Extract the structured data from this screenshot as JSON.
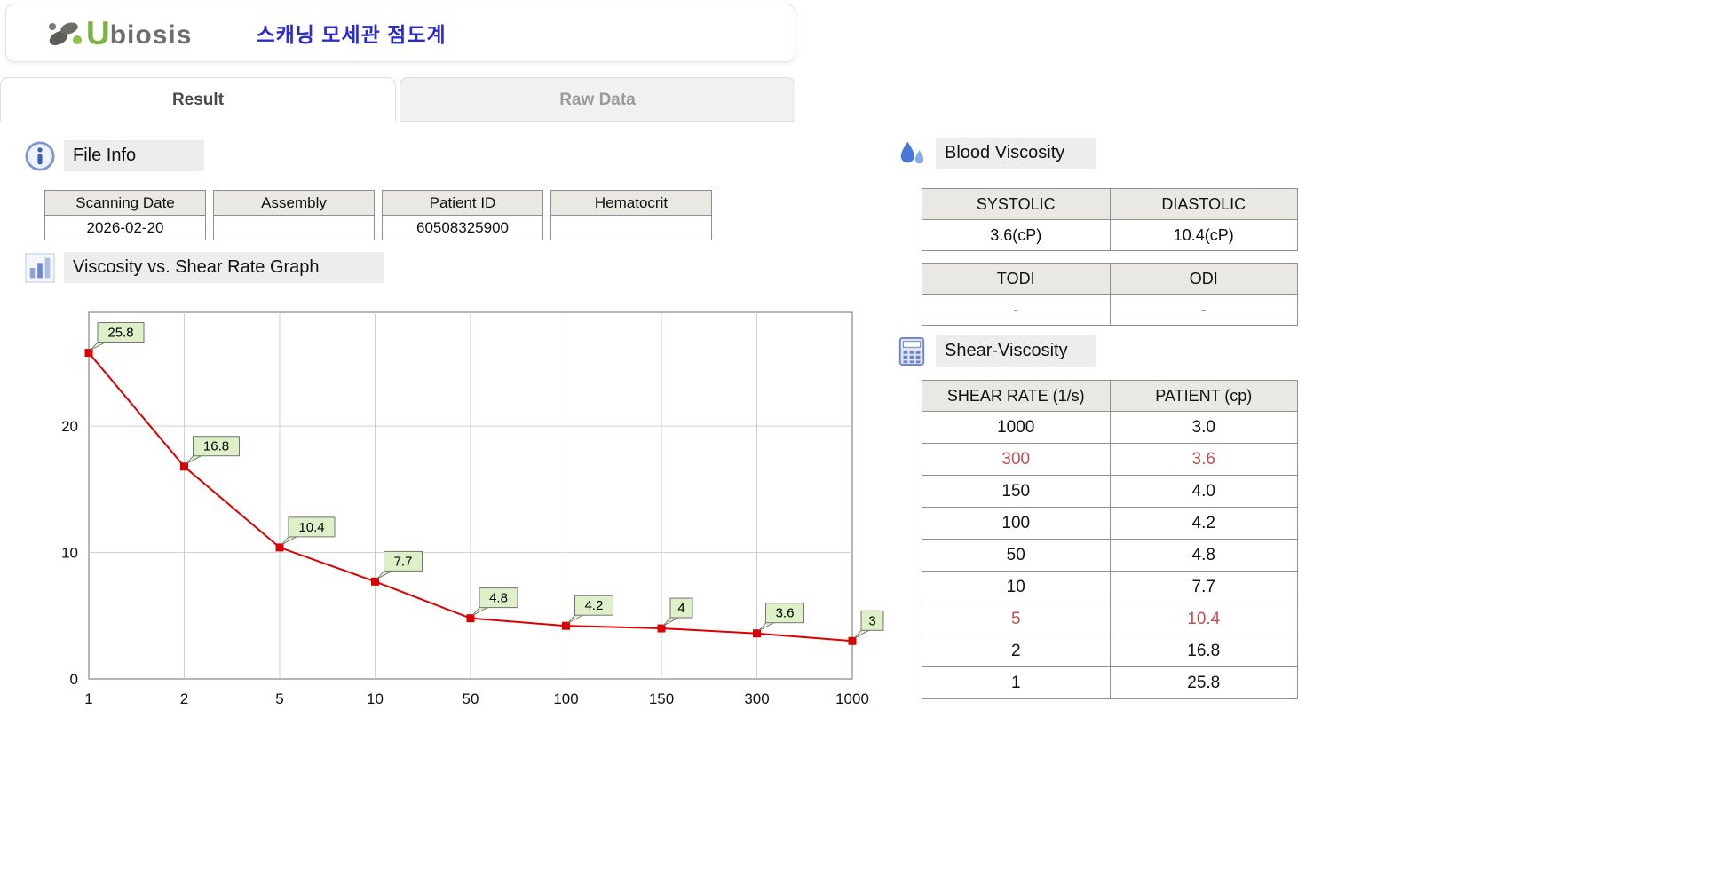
{
  "header": {
    "logo": {
      "u": "U",
      "rest": "biosis"
    },
    "title": "스캐닝 모세관 점도계"
  },
  "tabs": [
    {
      "label": "Result",
      "active": true
    },
    {
      "label": "Raw Data",
      "active": false
    }
  ],
  "sections": {
    "file_info": "File Info",
    "graph": "Viscosity vs. Shear Rate Graph",
    "blood_viscosity": "Blood Viscosity",
    "shear_viscosity": "Shear-Viscosity"
  },
  "icons": {
    "file_info": "info-icon",
    "graph": "bar-chart-icon",
    "blood_viscosity": "blood-drop-icon",
    "shear_viscosity": "calculator-icon",
    "logo": "leaf-icon"
  },
  "file_info": {
    "fields": [
      {
        "label": "Scanning Date",
        "value": "2026-02-20"
      },
      {
        "label": "Assembly",
        "value": ""
      },
      {
        "label": "Patient ID",
        "value": "60508325900"
      },
      {
        "label": "Hematocrit",
        "value": ""
      }
    ]
  },
  "chart_data": {
    "type": "line",
    "title": "Viscosity vs. Shear Rate Graph",
    "xlabel": "",
    "ylabel": "",
    "categories": [
      "1",
      "2",
      "5",
      "10",
      "50",
      "100",
      "150",
      "300",
      "1000"
    ],
    "values": [
      25.8,
      16.8,
      10.4,
      7.7,
      4.8,
      4.2,
      4,
      3.6,
      3
    ],
    "labels": [
      "25.8",
      "16.8",
      "10.4",
      "7.7",
      "4.8",
      "4.2",
      "4",
      "3.6",
      "3"
    ],
    "ylim": [
      0,
      29
    ],
    "yticks": [
      0,
      10,
      20
    ],
    "grid": true,
    "legend": "none",
    "line_color": "#dd0000",
    "marker": "square",
    "label_box_color": "#def0c8",
    "label_box_border": "#666666",
    "grid_color": "#cfcfcf",
    "border_color": "#8f8f8f"
  },
  "blood_viscosity": {
    "table1": {
      "headers": [
        "SYSTOLIC",
        "DIASTOLIC"
      ],
      "values": [
        "3.6(cP)",
        "10.4(cP)"
      ]
    },
    "table2": {
      "headers": [
        "TODI",
        "ODI"
      ],
      "values": [
        "-",
        "-"
      ]
    }
  },
  "shear_viscosity": {
    "headers": [
      "SHEAR RATE (1/s)",
      "PATIENT (cp)"
    ],
    "highlight_color": "#c0504d",
    "rows": [
      {
        "shear": "1000",
        "patient": "3.0",
        "highlight": false
      },
      {
        "shear": "300",
        "patient": "3.6",
        "highlight": true
      },
      {
        "shear": "150",
        "patient": "4.0",
        "highlight": false
      },
      {
        "shear": "100",
        "patient": "4.2",
        "highlight": false
      },
      {
        "shear": "50",
        "patient": "4.8",
        "highlight": false
      },
      {
        "shear": "10",
        "patient": "7.7",
        "highlight": false
      },
      {
        "shear": "5",
        "patient": "10.4",
        "highlight": true
      },
      {
        "shear": "2",
        "patient": "16.8",
        "highlight": false
      },
      {
        "shear": "1",
        "patient": "25.8",
        "highlight": false
      }
    ]
  },
  "colors": {
    "title_blue": "#2b2bd0",
    "logo_green": "#7cb342",
    "header_cell_bg": "#e9e8e3",
    "highlight_red": "#c0504d",
    "line_red": "#dd0000"
  }
}
